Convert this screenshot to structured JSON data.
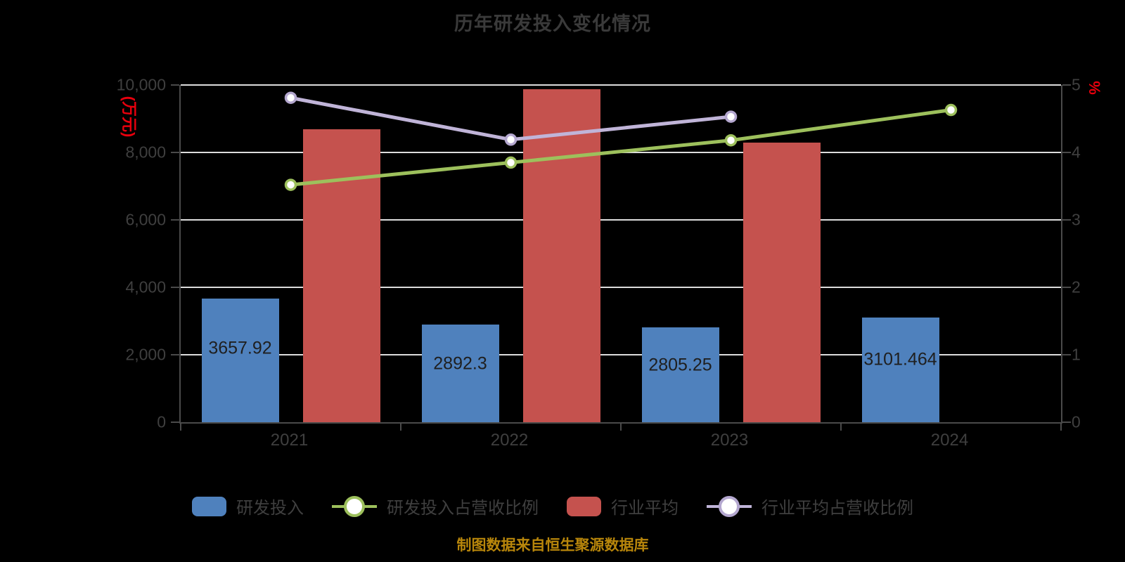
{
  "title": "历年研发投入变化情况",
  "caption": {
    "text": "制图数据来自恒生聚源数据库",
    "color": "#B8860B"
  },
  "colors": {
    "bar_blue": "#4F81BD",
    "bar_red": "#C5524E",
    "line_green": "#9DC05C",
    "line_purple": "#C0B4D8",
    "line_purple_ring": "#B4A7CF",
    "axis_unit_red": "#E8000D",
    "gridline": "#DCDCDC",
    "axis": "#4A4A4A",
    "tick_text": "#3F3F3F"
  },
  "chart_data": {
    "type": "bar",
    "subtype": "grouped-bars-with-lines-dual-axis",
    "categories": [
      "2021",
      "2022",
      "2023",
      "2024"
    ],
    "series": [
      {
        "name": "研发投入",
        "type": "bar",
        "axis": "left",
        "color": "#4F81BD",
        "values": [
          3657.92,
          2892.3,
          2805.25,
          3101.464
        ],
        "data_labels": [
          "3657.92",
          "2892.3",
          "2805.25",
          "3101.464"
        ]
      },
      {
        "name": "行业平均",
        "type": "bar",
        "axis": "left",
        "color": "#C5524E",
        "values": [
          8690,
          9875,
          8290,
          null
        ],
        "data_labels": [
          null,
          null,
          null,
          null
        ]
      },
      {
        "name": "研发投入占营收比例",
        "type": "line",
        "axis": "right",
        "color": "#9DC05C",
        "ring": "#9DC05C",
        "values": [
          3.52,
          3.85,
          4.18,
          4.63
        ]
      },
      {
        "name": "行业平均占营收比例",
        "type": "line",
        "axis": "right",
        "color": "#C0B4D8",
        "ring": "#B4A7CF",
        "values": [
          4.81,
          4.19,
          4.53,
          null
        ]
      }
    ],
    "left_axis": {
      "unit_label": "(万元)",
      "min": 0,
      "max": 10000,
      "ticks": [
        0,
        2000,
        4000,
        6000,
        8000,
        10000
      ],
      "tick_labels": [
        "0",
        "2,000",
        "4,000",
        "6,000",
        "8,000",
        "10,000"
      ]
    },
    "right_axis": {
      "unit_label": "%",
      "min": 0,
      "max": 5,
      "ticks": [
        0,
        1,
        2,
        3,
        4,
        5
      ],
      "tick_labels": [
        "0",
        "1",
        "2",
        "3",
        "4",
        "5"
      ]
    },
    "grid": true,
    "legend_position": "bottom"
  },
  "legend": [
    {
      "label": "研发投入",
      "swatch": "bar",
      "color": "#4F81BD"
    },
    {
      "label": "研发投入占营收比例",
      "swatch": "line",
      "color": "#9DC05C",
      "ring": "#9DC05C"
    },
    {
      "label": "行业平均",
      "swatch": "bar",
      "color": "#C5524E"
    },
    {
      "label": "行业平均占营收比例",
      "swatch": "line",
      "color": "#C0B4D8",
      "ring": "#B4A7CF"
    }
  ]
}
